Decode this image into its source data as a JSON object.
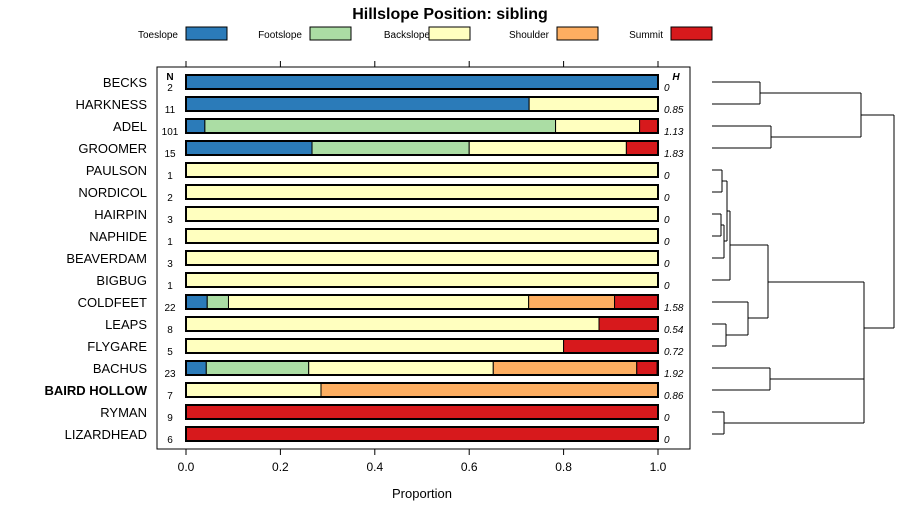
{
  "chart_data": {
    "type": "bar",
    "orientation": "horizontal-stacked",
    "title": "Hillslope Position: sibling",
    "xlabel": "Proportion",
    "ylabel": "",
    "xlim": [
      0,
      1
    ],
    "x_ticks": [
      "0.0",
      "0.2",
      "0.4",
      "0.6",
      "0.8",
      "1.0"
    ],
    "n_header": "N",
    "h_header": "H",
    "legend": [
      {
        "name": "Toeslope",
        "color": "#2b7bb9"
      },
      {
        "name": "Footslope",
        "color": "#abdda4"
      },
      {
        "name": "Backslope",
        "color": "#ffffbf"
      },
      {
        "name": "Shoulder",
        "color": "#fdae61"
      },
      {
        "name": "Summit",
        "color": "#d7191c"
      }
    ],
    "categories": [
      "BECKS",
      "HARKNESS",
      "ADEL",
      "GROOMER",
      "PAULSON",
      "NORDICOL",
      "HAIRPIN",
      "NAPHIDE",
      "BEAVERDAM",
      "BIGBUG",
      "COLDFEET",
      "LEAPS",
      "FLYGARE",
      "BACHUS",
      "BAIRD HOLLOW",
      "RYMAN",
      "LIZARDHEAD"
    ],
    "highlighted": "BAIRD HOLLOW",
    "n": [
      "2",
      "11",
      "101",
      "15",
      "1",
      "2",
      "3",
      "1",
      "3",
      "1",
      "22",
      "8",
      "5",
      "23",
      "7",
      "9",
      "6"
    ],
    "h": [
      "0",
      "0.85",
      "1.13",
      "1.83",
      "0",
      "0",
      "0",
      "0",
      "0",
      "0",
      "1.58",
      "0.54",
      "0.72",
      "1.92",
      "0.86",
      "0",
      "0"
    ],
    "series": [
      {
        "name": "Toeslope",
        "values": [
          1.0,
          0.727,
          0.04,
          0.267,
          0,
          0,
          0,
          0,
          0,
          0,
          0.045,
          0,
          0,
          0.043,
          0,
          0,
          0
        ]
      },
      {
        "name": "Footslope",
        "values": [
          0,
          0,
          0.743,
          0.333,
          0,
          0,
          0,
          0,
          0,
          0,
          0.045,
          0,
          0,
          0.217,
          0,
          0,
          0
        ]
      },
      {
        "name": "Backslope",
        "values": [
          0,
          0.273,
          0.178,
          0.333,
          1.0,
          1.0,
          1.0,
          1.0,
          1.0,
          1.0,
          0.636,
          0.875,
          0.8,
          0.391,
          0.286,
          0,
          0
        ]
      },
      {
        "name": "Shoulder",
        "values": [
          0,
          0,
          0,
          0,
          0,
          0,
          0,
          0,
          0,
          0,
          0.182,
          0,
          0,
          0.304,
          0.714,
          0,
          0
        ]
      },
      {
        "name": "Summit",
        "values": [
          0,
          0,
          0.04,
          0.067,
          0,
          0,
          0,
          0,
          0,
          0,
          0.091,
          0.125,
          0.2,
          0.043,
          0,
          1.0,
          1.0
        ]
      }
    ],
    "dendrogram": {
      "linkage": "hierarchical clustering of the 17 series, drawn to the right of the bars"
    }
  }
}
